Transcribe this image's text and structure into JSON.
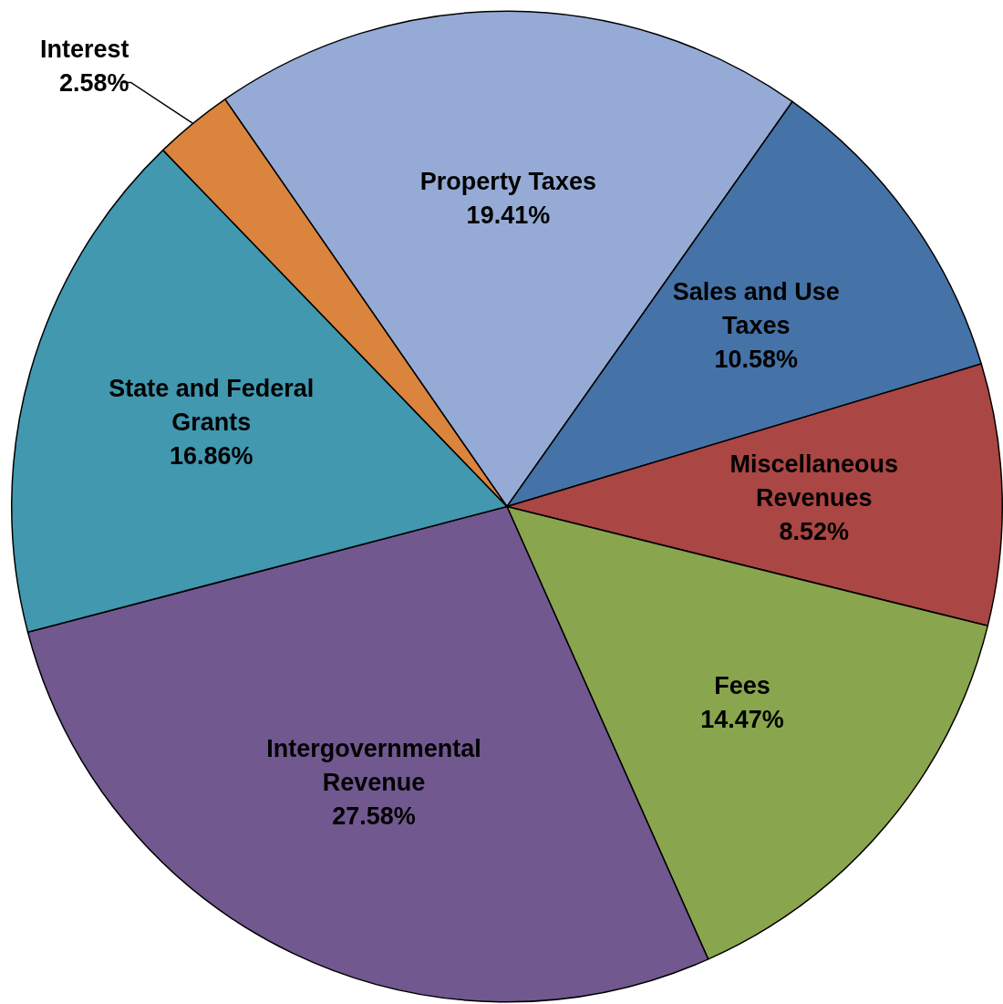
{
  "chart_data": {
    "type": "pie",
    "categories": [
      "Property Taxes",
      "Sales and Use Taxes",
      "Miscellaneous Revenues",
      "Fees",
      "Intergovernmental Revenue",
      "State and Federal Grants",
      "Interest"
    ],
    "values": [
      19.41,
      10.58,
      8.52,
      14.47,
      27.58,
      16.86,
      2.58
    ],
    "value_labels": [
      "19.41%",
      "10.58%",
      "8.52%",
      "14.47%",
      "27.58%",
      "16.86%",
      "2.58%"
    ],
    "colors": [
      "#95abd6",
      "#4572a7",
      "#aa4643",
      "#89a54e",
      "#71588f",
      "#4198af",
      "#db843d"
    ],
    "legend": false
  }
}
